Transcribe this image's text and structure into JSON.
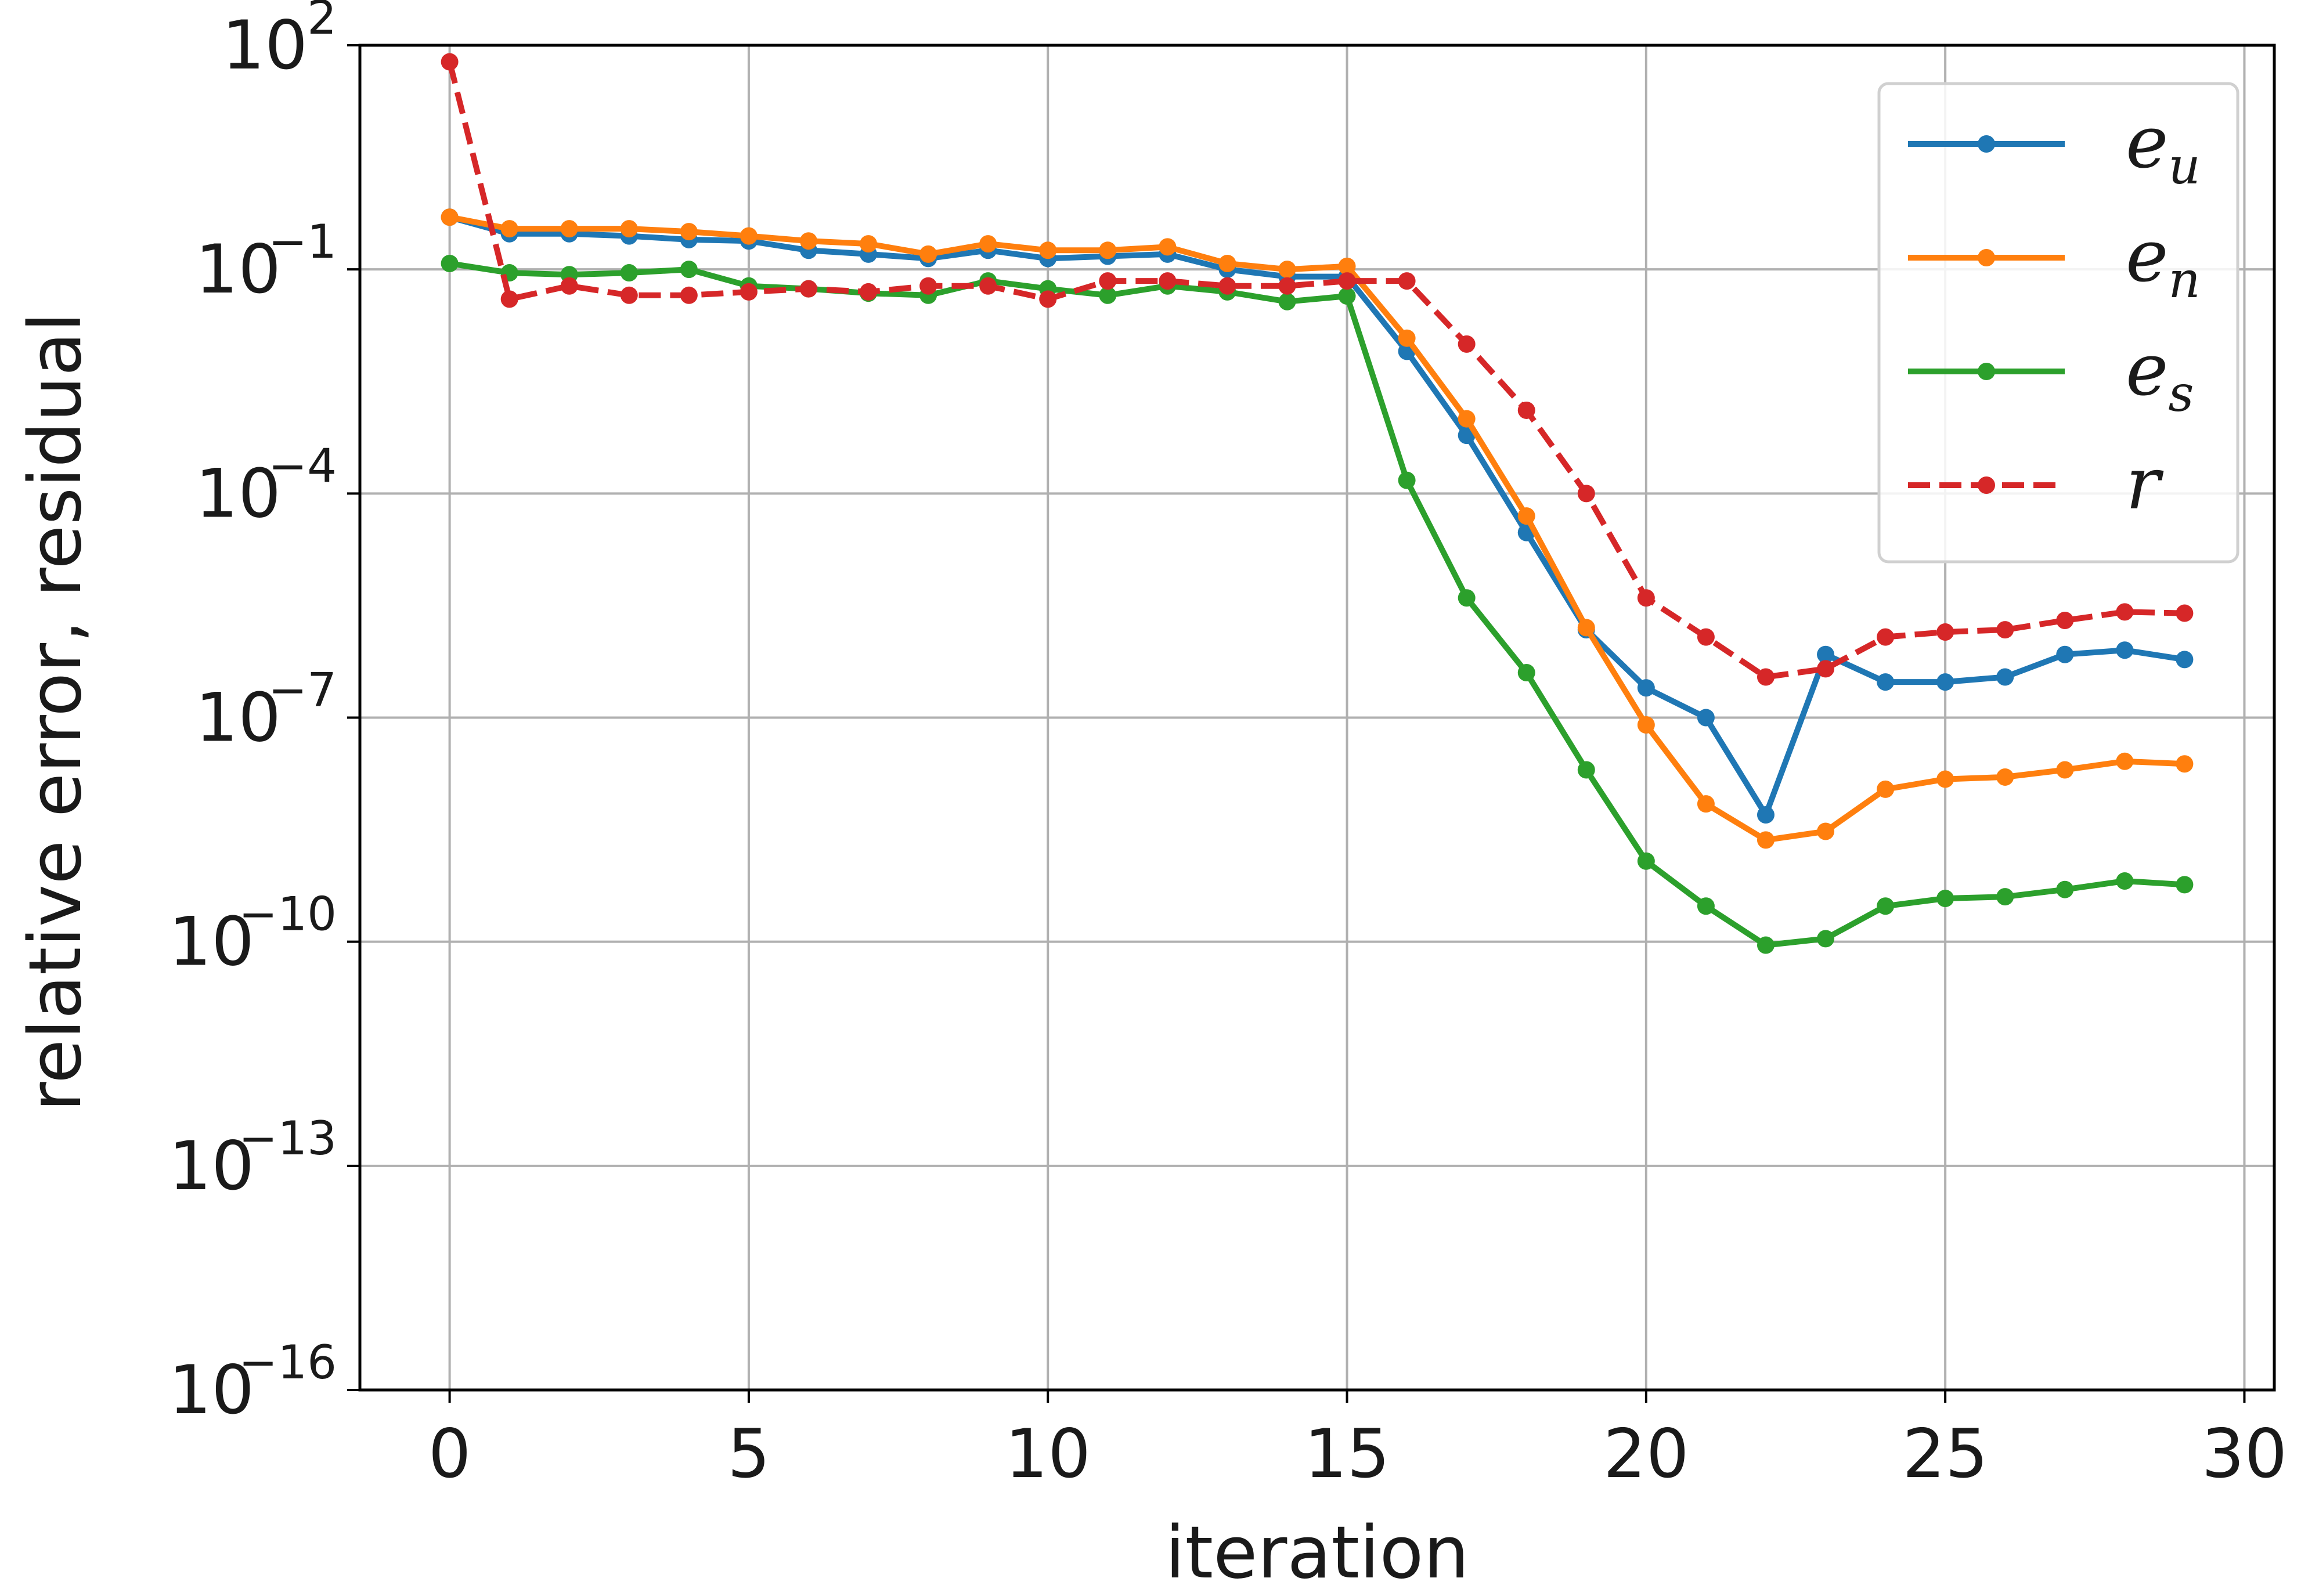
{
  "chart_data": {
    "type": "line",
    "xlabel": "iteration",
    "ylabel": "relative error, residual",
    "xlim": [
      -1.5,
      30.5
    ],
    "ylim_exponent": [
      -16,
      2
    ],
    "y_scale": "log",
    "grid": true,
    "legend_position": "top-right",
    "x_ticks": [
      0,
      5,
      10,
      15,
      20,
      25,
      30
    ],
    "y_ticks": [
      {
        "base": "10",
        "exp": "2",
        "value": 100.0
      },
      {
        "base": "10",
        "exp": "−1",
        "value": 0.1
      },
      {
        "base": "10",
        "exp": "−4",
        "value": 0.0001
      },
      {
        "base": "10",
        "exp": "−7",
        "value": 1e-07
      },
      {
        "base": "10",
        "exp": "−10",
        "value": 1e-10
      },
      {
        "base": "10",
        "exp": "−13",
        "value": 1e-13
      },
      {
        "base": "10",
        "exp": "−16",
        "value": 1e-16
      }
    ],
    "x": [
      0,
      1,
      2,
      3,
      4,
      5,
      6,
      7,
      8,
      9,
      10,
      11,
      12,
      13,
      14,
      15,
      16,
      17,
      18,
      19,
      20,
      21,
      22,
      23,
      24,
      25,
      26,
      27,
      28,
      29
    ],
    "series": [
      {
        "name": "e_u",
        "label_main": "e",
        "label_sub": "u",
        "color": "#1f77b4",
        "dashed": false,
        "values": [
          0.5,
          0.3,
          0.3,
          0.28,
          0.25,
          0.24,
          0.18,
          0.16,
          0.14,
          0.18,
          0.14,
          0.15,
          0.16,
          0.1,
          0.08,
          0.08,
          0.008,
          0.0006,
          3e-05,
          1.5e-06,
          2.5e-07,
          1e-07,
          5e-09,
          7e-07,
          3e-07,
          3e-07,
          3.5e-07,
          7e-07,
          8e-07,
          6e-07
        ]
      },
      {
        "name": "e_n",
        "label_main": "e",
        "label_sub": "n",
        "color": "#ff7f0e",
        "dashed": false,
        "values": [
          0.5,
          0.35,
          0.35,
          0.35,
          0.32,
          0.28,
          0.24,
          0.22,
          0.16,
          0.22,
          0.18,
          0.18,
          0.2,
          0.12,
          0.1,
          0.11,
          0.012,
          0.001,
          5e-05,
          1.6e-06,
          8e-08,
          7e-09,
          2.3e-09,
          3e-09,
          1.1e-08,
          1.5e-08,
          1.6e-08,
          2e-08,
          2.6e-08,
          2.4e-08
        ]
      },
      {
        "name": "e_s",
        "label_main": "e",
        "label_sub": "s",
        "color": "#2ca02c",
        "dashed": false,
        "values": [
          0.12,
          0.09,
          0.085,
          0.09,
          0.1,
          0.06,
          0.055,
          0.048,
          0.045,
          0.07,
          0.055,
          0.045,
          0.06,
          0.05,
          0.037,
          0.044,
          0.00015,
          4e-06,
          4e-07,
          2e-08,
          1.2e-09,
          3e-10,
          9e-11,
          1.1e-10,
          3e-10,
          3.8e-10,
          4e-10,
          5e-10,
          6.5e-10,
          5.8e-10
        ]
      },
      {
        "name": "r",
        "label_main": "r",
        "label_sub": "",
        "color": "#d62728",
        "dashed": true,
        "values": [
          60,
          0.04,
          0.06,
          0.045,
          0.045,
          0.05,
          0.055,
          0.05,
          0.06,
          0.06,
          0.04,
          0.07,
          0.07,
          0.06,
          0.06,
          0.07,
          0.07,
          0.01,
          0.0013,
          0.0001,
          4e-06,
          1.2e-06,
          3.5e-07,
          4.5e-07,
          1.2e-06,
          1.4e-06,
          1.5e-06,
          2e-06,
          2.6e-06,
          2.5e-06
        ]
      }
    ]
  }
}
